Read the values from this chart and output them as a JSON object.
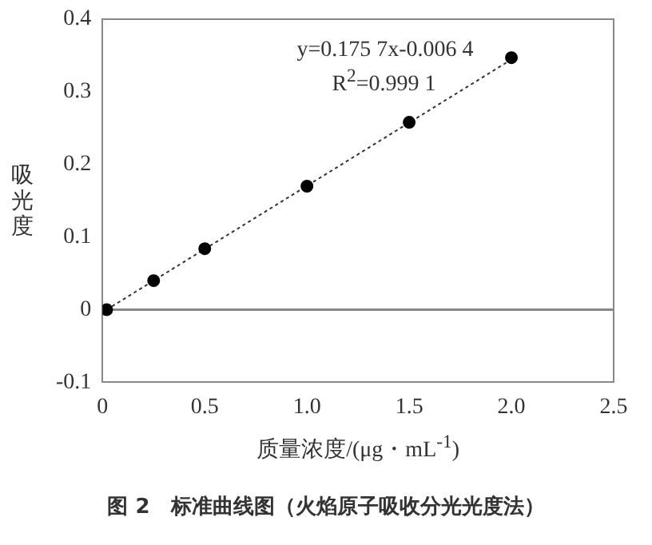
{
  "chart_data": {
    "type": "scatter",
    "xlabel": "质量浓度/(μg・mL$^{-1}$)",
    "ylabel": "吸光度",
    "annotations": [
      "y=0.175 7x-0.006 4",
      "R$^{2}$=0.999 1",
      "图 2　标准曲线图（火焰原子吸收分光光度法）"
    ],
    "series": [
      {
        "type": "scatter",
        "color": "#000000",
        "marker": "circle",
        "x": [
          0.02,
          0.25,
          0.5,
          1.0,
          1.5,
          2.0
        ],
        "values": [
          0,
          0.04,
          0.084,
          0.17,
          0.258,
          0.347
        ]
      },
      {
        "type": "line",
        "color": "#333333",
        "marker": "none",
        "line_style": "dotted",
        "x": [
          0.02,
          2.02
        ],
        "values": [
          0,
          0.348
        ]
      }
    ],
    "xlim": [
      0,
      2.5
    ],
    "xticks": [
      0,
      0.5,
      {
        "value": 1,
        "label": "1.0"
      },
      1.5,
      {
        "value": 2,
        "label": "2.0"
      },
      2.5
    ],
    "ylim": [
      -0.1,
      0.4
    ],
    "yticks": [
      -0.1,
      0,
      0.1,
      0.2,
      0.3,
      0.4
    ],
    "ref_lines": [
      {
        "axis": "y",
        "value": 0,
        "color": "#888888",
        "line_style": "solid"
      }
    ],
    "grid": false,
    "legend": false
  }
}
